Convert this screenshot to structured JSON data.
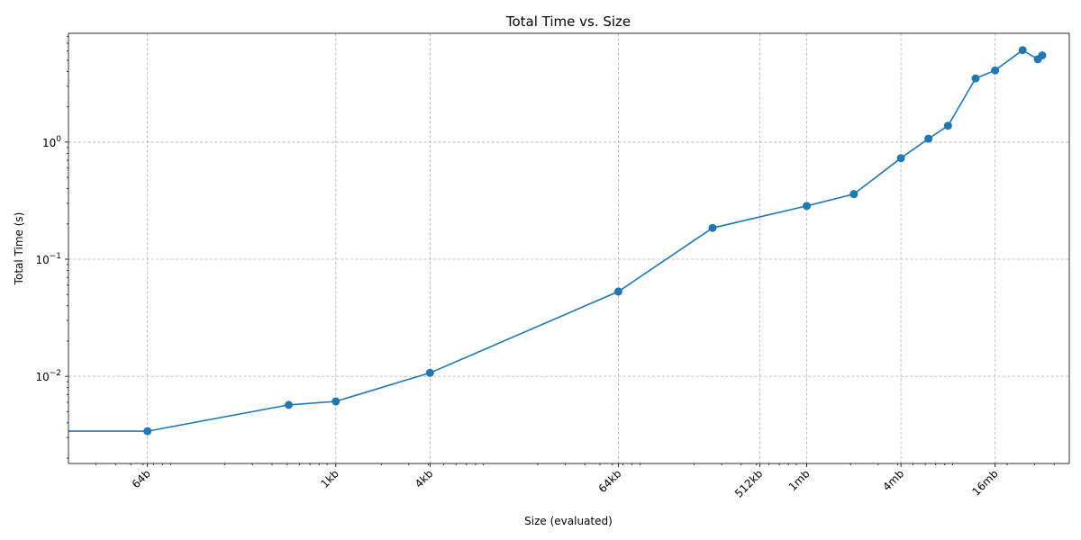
{
  "chart_data": {
    "type": "line",
    "title": "Total Time vs. Size",
    "xlabel": "Size (evaluated)",
    "ylabel": "Total Time (s)",
    "x_scale": "log2",
    "y_scale": "log10",
    "xlim_bytes": [
      20,
      50000000
    ],
    "ylim": [
      0.0018,
      8.5
    ],
    "grid": true,
    "legend": "none",
    "color": "#1f77b4",
    "x_ticks": [
      {
        "value": 64,
        "label": "64b"
      },
      {
        "value": 1024,
        "label": "1kb"
      },
      {
        "value": 4096,
        "label": "4kb"
      },
      {
        "value": 65536,
        "label": "64kb"
      },
      {
        "value": 524288,
        "label": "512kb"
      },
      {
        "value": 1048576,
        "label": "1mb"
      },
      {
        "value": 4194304,
        "label": "4mb"
      },
      {
        "value": 16777216,
        "label": "16mb"
      }
    ],
    "y_ticks": [
      {
        "value": 0.01,
        "base": "10",
        "exp": "−2"
      },
      {
        "value": 0.1,
        "base": "10",
        "exp": "−1"
      },
      {
        "value": 1,
        "base": "10",
        "exp": "0"
      }
    ],
    "line_start": {
      "x_bytes": 20,
      "y": 0.0034
    },
    "series": [
      {
        "x_bytes": [
          64,
          512,
          1024,
          4096,
          65536,
          262144,
          1048576,
          2097152,
          4194304,
          6291456,
          8388608,
          12582912,
          16777216,
          25165824,
          31457280,
          33554432
        ],
        "y": [
          0.0034,
          0.0057,
          0.0061,
          0.0107,
          0.053,
          0.185,
          0.285,
          0.36,
          0.73,
          1.07,
          1.38,
          3.5,
          4.1,
          6.1,
          5.1,
          5.5
        ]
      }
    ]
  }
}
